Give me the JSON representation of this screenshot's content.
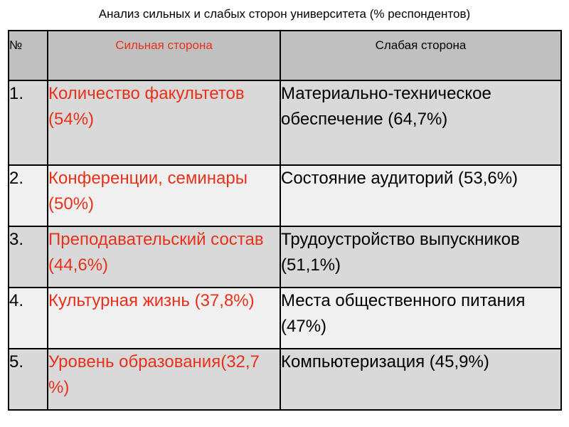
{
  "title": "Анализ сильных и слабых сторон университета (% респондентов)",
  "colors": {
    "strong_text": "#e8311a",
    "header_bg": "#c0c0c0",
    "row_dark": "#d9d9d9",
    "row_light": "#f0f0f0"
  },
  "table": {
    "headers": {
      "num": "№",
      "strong": "Сильная  сторона",
      "weak": "Слабая сторона"
    },
    "rows": [
      {
        "num": "1.",
        "strong": "Количество факультетов (54%)",
        "weak": "Материально-техническое обеспечение (64,7%)"
      },
      {
        "num": "2.",
        "strong": "Конференции, семинары (50%)",
        "weak": "Состояние аудиторий (53,6%)"
      },
      {
        "num": "3.",
        "strong": "Преподавательский состав (44,6%)",
        "weak": "Трудоустройство выпускников (51,1%)"
      },
      {
        "num": "4.",
        "strong": "Культурная жизнь (37,8%)",
        "weak": "Места общественного питания (47%)"
      },
      {
        "num": "5.",
        "strong": "Уровень образования(32,7 %)",
        "weak": "Компьютеризация (45,9%)"
      }
    ]
  }
}
